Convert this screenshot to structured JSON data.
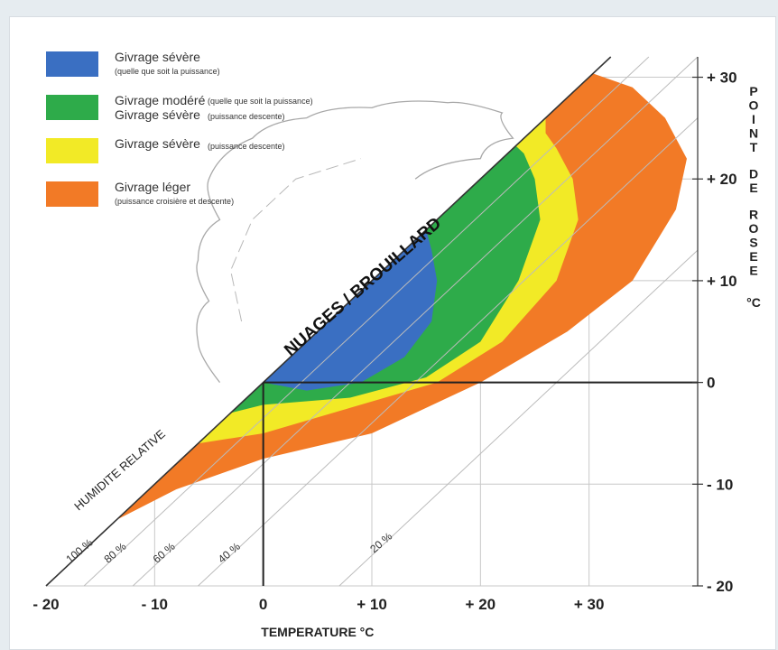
{
  "chart_data": {
    "type": "area",
    "xlabel": "TEMPERATURE °C",
    "ylabel_words": [
      "POINT",
      "DE",
      "ROSEE",
      "°C"
    ],
    "diagonal_label": "HUMIDITE RELATIVE",
    "cloud_label": "NUAGES / BROUILLARD",
    "xlim": [
      -20,
      40
    ],
    "ylim": [
      -20,
      32
    ],
    "x_ticks": [
      {
        "value": -20,
        "label": "- 20"
      },
      {
        "value": -10,
        "label": "- 10"
      },
      {
        "value": 0,
        "label": "0"
      },
      {
        "value": 10,
        "label": "+ 10"
      },
      {
        "value": 20,
        "label": "+ 20"
      },
      {
        "value": 30,
        "label": "+ 30"
      }
    ],
    "y_ticks": [
      {
        "value": -20,
        "label": "- 20"
      },
      {
        "value": -10,
        "label": "- 10"
      },
      {
        "value": 0,
        "label": "0"
      },
      {
        "value": 10,
        "label": "+ 10"
      },
      {
        "value": 20,
        "label": "+ 20"
      },
      {
        "value": 30,
        "label": "+ 30"
      }
    ],
    "rh_lines": [
      {
        "label": "100 %",
        "offset": 0
      },
      {
        "label": "80 %",
        "offset": 3.5
      },
      {
        "label": "60 %",
        "offset": 8
      },
      {
        "label": "40 %",
        "offset": 14
      },
      {
        "label": "20 %",
        "offset": 27
      }
    ],
    "legend": [
      {
        "label": "Givrage sévère",
        "sub": "(quelle que soit la puissance)",
        "color": "#3a6fc2"
      },
      {
        "label": "Givrage modéré",
        "sub": "(quelle que soit la puissance)",
        "label2": "Givrage sévère",
        "sub2": "(puissance descente)",
        "color": "#2eab4a"
      },
      {
        "label": "Givrage sévère",
        "sub": "(puissance descente)",
        "color": "#f2ea26"
      },
      {
        "label": "Givrage léger",
        "sub": "(puissance croisière et descente)",
        "color": "#f27a26"
      }
    ],
    "zones": [
      {
        "name": "Givrage léger",
        "color": "#f27a26",
        "points": [
          [
            -13.5,
            -13.5
          ],
          [
            -8,
            -10.5
          ],
          [
            0,
            -7.5
          ],
          [
            10,
            -5
          ],
          [
            20,
            0
          ],
          [
            28,
            5
          ],
          [
            34,
            10
          ],
          [
            38,
            17
          ],
          [
            39,
            22
          ],
          [
            37,
            26
          ],
          [
            34,
            29
          ],
          [
            30,
            30.5
          ],
          [
            30,
            30
          ]
        ]
      },
      {
        "name": "Givrage sévère",
        "color": "#f2ea26",
        "points": [
          [
            -6,
            -6
          ],
          [
            0,
            -5
          ],
          [
            8,
            -2.5
          ],
          [
            16,
            0
          ],
          [
            22,
            4
          ],
          [
            27,
            10
          ],
          [
            29,
            16
          ],
          [
            28.5,
            20
          ],
          [
            27,
            23
          ],
          [
            26,
            24.5
          ],
          [
            26,
            26
          ]
        ]
      },
      {
        "name": "Givrage modéré",
        "color": "#2eab4a",
        "points": [
          [
            -3,
            -3
          ],
          [
            0,
            -2.2
          ],
          [
            8,
            -1.5
          ],
          [
            15,
            0.5
          ],
          [
            20,
            4
          ],
          [
            23.5,
            10
          ],
          [
            25.5,
            16
          ],
          [
            25,
            20
          ],
          [
            24,
            22.5
          ],
          [
            23,
            23.5
          ],
          [
            23,
            23
          ]
        ]
      },
      {
        "name": "Givrage sévère",
        "color": "#3a6fc2",
        "points": [
          [
            0,
            0
          ],
          [
            4,
            -0.8
          ],
          [
            9,
            0
          ],
          [
            13,
            2.5
          ],
          [
            15.5,
            6
          ],
          [
            16,
            10
          ],
          [
            15.5,
            13
          ],
          [
            15,
            15
          ],
          [
            15,
            15
          ]
        ]
      }
    ],
    "reference_lines": [
      {
        "from": [
          0,
          -20
        ],
        "to": [
          0,
          0
        ]
      },
      {
        "from": [
          0,
          0
        ],
        "to": [
          40,
          0
        ]
      }
    ],
    "grid": true
  }
}
